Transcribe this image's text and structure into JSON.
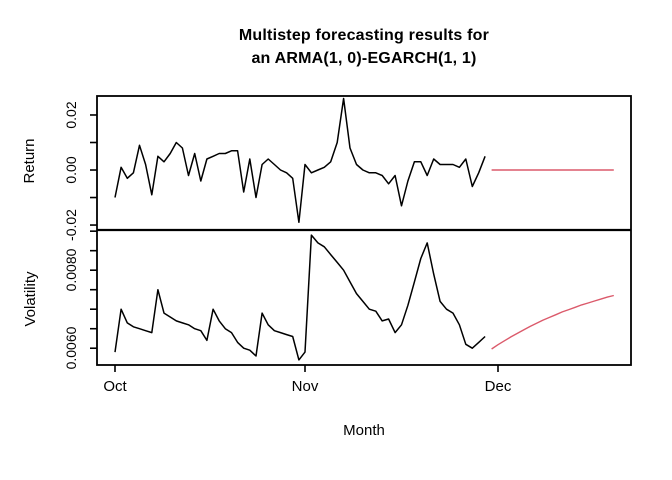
{
  "title": {
    "line1": "Multistep forecasting results for",
    "line2": "an ARMA(1, 0)-EGARCH(1, 1)"
  },
  "colors": {
    "observed": "#000000",
    "forecast": "#db5a6b",
    "axis": "#000000",
    "background": "#ffffff"
  },
  "xaxis": {
    "label": "Month",
    "ticks": [
      {
        "day": 0,
        "label": "Oct"
      },
      {
        "day": 31,
        "label": "Nov"
      },
      {
        "day": 61,
        "label": "Dec"
      }
    ]
  },
  "chart_data": [
    {
      "type": "line",
      "panel": "return",
      "ylabel": "Return",
      "ylim": [
        -0.0218,
        0.0269
      ],
      "grid": false,
      "yticks_labeled": [
        {
          "value": 0.02,
          "label": "0.02"
        },
        {
          "value": 0.0,
          "label": "0.00"
        },
        {
          "value": -0.02,
          "label": "-0.02"
        }
      ],
      "yticks_minor": [
        0.01,
        -0.01
      ],
      "series": [
        {
          "name": "observed",
          "color_key": "observed",
          "start_day": 0,
          "values": [
            -0.01,
            0.001,
            -0.003,
            -0.001,
            0.009,
            0.002,
            -0.009,
            0.005,
            0.003,
            0.006,
            0.01,
            0.008,
            -0.002,
            0.006,
            -0.004,
            0.004,
            0.005,
            0.006,
            0.006,
            0.007,
            0.007,
            -0.008,
            0.004,
            -0.01,
            0.002,
            0.004,
            0.002,
            0.0,
            -0.001,
            -0.003,
            -0.019,
            0.002,
            -0.001,
            0.0,
            0.001,
            0.003,
            0.01,
            0.026,
            0.008,
            0.002,
            0.0,
            -0.001,
            -0.001,
            -0.002,
            -0.005,
            -0.002,
            -0.013,
            -0.004,
            0.003,
            0.003,
            -0.002,
            0.004,
            0.002,
            0.002,
            0.002,
            0.001,
            0.004,
            -0.006,
            -0.001,
            0.005
          ]
        },
        {
          "name": "forecast",
          "color_key": "forecast",
          "start_day": 60,
          "values": [
            0.0,
            0.0,
            0.0,
            0.0,
            0.0,
            0.0,
            0.0,
            0.0,
            0.0,
            0.0,
            0.0,
            0.0,
            0.0,
            0.0,
            0.0,
            0.0,
            0.0,
            0.0,
            0.0,
            0.0
          ]
        }
      ]
    },
    {
      "type": "line",
      "panel": "volatility",
      "ylabel": "Volatility",
      "ylim": [
        0.00557,
        0.00903
      ],
      "grid": false,
      "yticks_labeled": [
        {
          "value": 0.008,
          "label": "0.0080"
        },
        {
          "value": 0.006,
          "label": "0.0060"
        }
      ],
      "yticks_minor": [
        0.009,
        0.0085,
        0.0075,
        0.007,
        0.0065
      ],
      "series": [
        {
          "name": "observed",
          "color_key": "observed",
          "start_day": 0,
          "values": [
            0.0059,
            0.007,
            0.00665,
            0.00655,
            0.0065,
            0.00645,
            0.0064,
            0.0075,
            0.0069,
            0.0068,
            0.0067,
            0.00665,
            0.0066,
            0.0065,
            0.00645,
            0.0062,
            0.007,
            0.0067,
            0.0065,
            0.0064,
            0.00615,
            0.006,
            0.00595,
            0.0058,
            0.0069,
            0.0066,
            0.00645,
            0.0064,
            0.00635,
            0.0063,
            0.0057,
            0.0059,
            0.0089,
            0.0087,
            0.0086,
            0.0084,
            0.0082,
            0.008,
            0.0077,
            0.0074,
            0.0072,
            0.007,
            0.00695,
            0.0067,
            0.00675,
            0.0064,
            0.0066,
            0.0071,
            0.0077,
            0.0083,
            0.0087,
            0.0079,
            0.0072,
            0.007,
            0.0069,
            0.0066,
            0.0061,
            0.006,
            0.00615,
            0.0063
          ]
        },
        {
          "name": "forecast",
          "color_key": "forecast",
          "start_day": 60,
          "values": [
            0.00598,
            0.00609,
            0.00619,
            0.00629,
            0.00638,
            0.00647,
            0.00656,
            0.00664,
            0.00672,
            0.00679,
            0.00686,
            0.00693,
            0.00699,
            0.00705,
            0.00711,
            0.00716,
            0.00721,
            0.00726,
            0.00731,
            0.00735
          ]
        }
      ]
    }
  ]
}
